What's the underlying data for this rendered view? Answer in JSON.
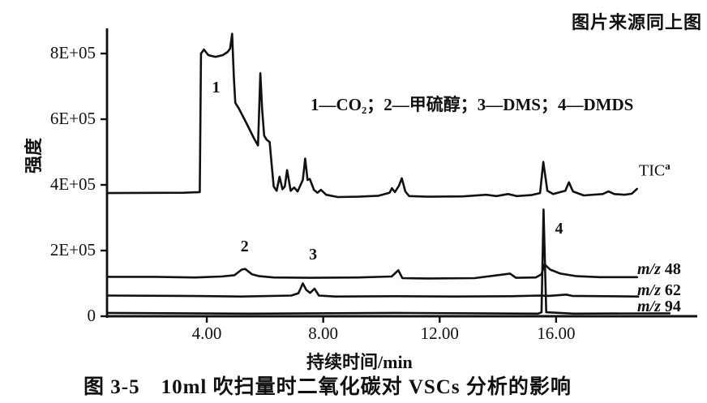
{
  "header": {
    "source_note": "图片来源同上图"
  },
  "legend": {
    "text": "1—CO₂；2—甲硫醇；3—DMS；4—DMDS"
  },
  "caption": {
    "text": "图 3-5　10ml 吹扫量时二氧化碳对 VSCs 分析的影响"
  },
  "colors": {
    "trace": "#111111",
    "text": "#111111",
    "background": "#ffffff"
  },
  "chart_data": {
    "type": "line",
    "title": "",
    "xlabel": "持续时间/min",
    "ylabel": "强度",
    "xlim": [
      0.6,
      21
    ],
    "ylim": [
      0,
      900000
    ],
    "intensity_unit": "×1E+05",
    "grid": false,
    "legend_position": "upper-middle",
    "x_ticks": [
      {
        "value": 4,
        "label": "4.00"
      },
      {
        "value": 8,
        "label": "8.00"
      },
      {
        "value": 12,
        "label": "12.00"
      },
      {
        "value": 16,
        "label": "16.00"
      }
    ],
    "y_ticks": [
      {
        "value": 8,
        "label": "8E+05"
      },
      {
        "value": 6,
        "label": "6E+05"
      },
      {
        "value": 4,
        "label": "4E+05"
      },
      {
        "value": 2,
        "label": "2E+05"
      },
      {
        "value": 0,
        "label": "0"
      }
    ],
    "series": [
      {
        "name": "TIC",
        "label": "TIC",
        "superscript": "a",
        "points": [
          [
            0.6,
            3.75
          ],
          [
            3.2,
            3.76
          ],
          [
            3.76,
            3.78
          ],
          [
            3.8,
            8.0
          ],
          [
            3.9,
            8.12
          ],
          [
            4.05,
            7.95
          ],
          [
            4.3,
            7.9
          ],
          [
            4.55,
            7.95
          ],
          [
            4.72,
            8.05
          ],
          [
            4.8,
            8.15
          ],
          [
            4.87,
            8.6
          ],
          [
            4.93,
            7.3
          ],
          [
            4.98,
            6.5
          ],
          [
            5.1,
            6.33
          ],
          [
            5.35,
            5.9
          ],
          [
            5.62,
            5.42
          ],
          [
            5.76,
            5.2
          ],
          [
            5.8,
            6.3
          ],
          [
            5.84,
            7.4
          ],
          [
            5.9,
            6.3
          ],
          [
            5.97,
            5.5
          ],
          [
            6.05,
            5.38
          ],
          [
            6.16,
            5.3
          ],
          [
            6.24,
            4.5
          ],
          [
            6.3,
            3.95
          ],
          [
            6.4,
            3.82
          ],
          [
            6.5,
            4.25
          ],
          [
            6.6,
            3.87
          ],
          [
            6.68,
            3.95
          ],
          [
            6.76,
            4.45
          ],
          [
            6.88,
            3.82
          ],
          [
            7.0,
            3.92
          ],
          [
            7.12,
            3.8
          ],
          [
            7.3,
            4.15
          ],
          [
            7.38,
            4.8
          ],
          [
            7.46,
            4.15
          ],
          [
            7.54,
            4.18
          ],
          [
            7.68,
            3.85
          ],
          [
            7.8,
            3.76
          ],
          [
            7.92,
            3.85
          ],
          [
            8.1,
            3.7
          ],
          [
            8.5,
            3.63
          ],
          [
            9.2,
            3.64
          ],
          [
            9.9,
            3.67
          ],
          [
            10.28,
            3.76
          ],
          [
            10.36,
            3.9
          ],
          [
            10.46,
            3.78
          ],
          [
            10.6,
            3.97
          ],
          [
            10.7,
            4.2
          ],
          [
            10.82,
            3.8
          ],
          [
            10.95,
            3.66
          ],
          [
            11.6,
            3.64
          ],
          [
            12.8,
            3.65
          ],
          [
            13.6,
            3.7
          ],
          [
            13.95,
            3.66
          ],
          [
            14.35,
            3.72
          ],
          [
            14.65,
            3.66
          ],
          [
            15.15,
            3.69
          ],
          [
            15.45,
            3.75
          ],
          [
            15.56,
            4.7
          ],
          [
            15.7,
            3.82
          ],
          [
            15.9,
            3.72
          ],
          [
            16.32,
            3.82
          ],
          [
            16.44,
            4.08
          ],
          [
            16.58,
            3.8
          ],
          [
            16.95,
            3.68
          ],
          [
            17.6,
            3.72
          ],
          [
            17.8,
            3.8
          ],
          [
            18.0,
            3.72
          ],
          [
            18.35,
            3.7
          ],
          [
            18.6,
            3.73
          ],
          [
            18.78,
            3.88
          ]
        ]
      },
      {
        "name": "m/z 48",
        "prefix": "m/z",
        "value": "48",
        "points": [
          [
            0.6,
            1.2
          ],
          [
            2.2,
            1.2
          ],
          [
            3.6,
            1.18
          ],
          [
            4.5,
            1.21
          ],
          [
            4.95,
            1.25
          ],
          [
            5.2,
            1.42
          ],
          [
            5.32,
            1.44
          ],
          [
            5.55,
            1.28
          ],
          [
            5.8,
            1.22
          ],
          [
            6.3,
            1.18
          ],
          [
            7.6,
            1.17
          ],
          [
            9.2,
            1.18
          ],
          [
            10.35,
            1.21
          ],
          [
            10.58,
            1.4
          ],
          [
            10.72,
            1.16
          ],
          [
            11.6,
            1.15
          ],
          [
            13.2,
            1.16
          ],
          [
            14.42,
            1.3
          ],
          [
            14.62,
            1.17
          ],
          [
            15.3,
            1.18
          ],
          [
            15.5,
            1.28
          ],
          [
            15.6,
            1.58
          ],
          [
            15.8,
            1.42
          ],
          [
            16.15,
            1.3
          ],
          [
            16.7,
            1.22
          ],
          [
            17.5,
            1.19
          ],
          [
            18.78,
            1.19
          ]
        ]
      },
      {
        "name": "m/z 62",
        "prefix": "m/z",
        "value": "62",
        "points": [
          [
            0.6,
            0.63
          ],
          [
            3.2,
            0.62
          ],
          [
            5.2,
            0.6
          ],
          [
            6.9,
            0.63
          ],
          [
            7.15,
            0.7
          ],
          [
            7.3,
            1.0
          ],
          [
            7.42,
            0.8
          ],
          [
            7.55,
            0.71
          ],
          [
            7.7,
            0.84
          ],
          [
            7.85,
            0.63
          ],
          [
            8.4,
            0.6
          ],
          [
            10.5,
            0.61
          ],
          [
            12.5,
            0.6
          ],
          [
            14.5,
            0.61
          ],
          [
            15.45,
            0.63
          ],
          [
            15.75,
            0.62
          ],
          [
            16.35,
            0.66
          ],
          [
            16.55,
            0.62
          ],
          [
            18.82,
            0.6
          ]
        ]
      },
      {
        "name": "m/z 94",
        "prefix": "m/z",
        "value": "94",
        "points": [
          [
            0.6,
            0.1
          ],
          [
            5.5,
            0.08
          ],
          [
            10.5,
            0.1
          ],
          [
            15.38,
            0.08
          ],
          [
            15.5,
            0.12
          ],
          [
            15.57,
            3.25
          ],
          [
            15.66,
            0.12
          ],
          [
            16.6,
            0.08
          ],
          [
            19.9,
            0.09
          ]
        ]
      }
    ],
    "annotations": [
      {
        "text": "1",
        "t": 4.32,
        "intensity": 6.95
      },
      {
        "text": "2",
        "t": 5.3,
        "intensity": 2.1
      },
      {
        "text": "3",
        "t": 7.65,
        "intensity": 1.85
      },
      {
        "text": "4",
        "t": 16.1,
        "intensity": 2.65
      }
    ]
  }
}
